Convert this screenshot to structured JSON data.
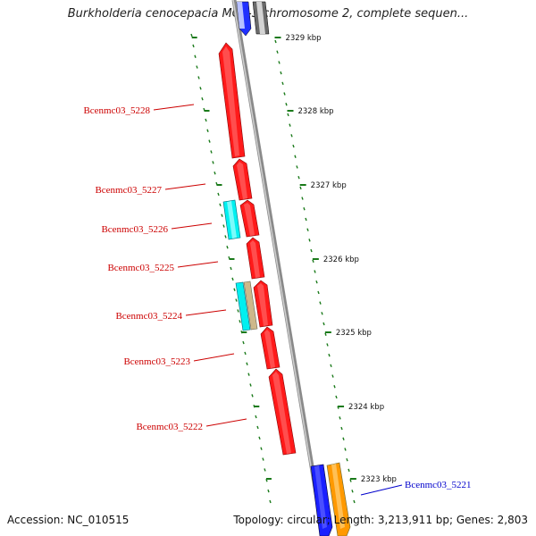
{
  "title": "Burkholderia cenocepacia MC0-3 chromosome 2, complete sequen...",
  "footer": {
    "accession": "Accession: NC_010515",
    "summary": "Topology: circular; Length: 3,213,911 bp; Genes: 2,803"
  },
  "colors": {
    "gene_red": "#ff0000",
    "gene_cyan": "#00ffff",
    "gene_tan": "#c8b482",
    "gene_blue": "#0000ff",
    "gene_orange": "#ff9900",
    "tick_green": "#1a7a1a",
    "label_red": "#cc0000",
    "label_blue": "#0000cc",
    "backbone": "#909090"
  },
  "scale_ticks": [
    {
      "label": "2329 kbp"
    },
    {
      "label": "2328 kbp"
    },
    {
      "label": "2327 kbp"
    },
    {
      "label": "2326 kbp"
    },
    {
      "label": "2325 kbp"
    },
    {
      "label": "2324 kbp"
    },
    {
      "label": "2323 kbp"
    }
  ],
  "gene_labels": [
    {
      "name": "Bcenmc03_5228",
      "color": "red"
    },
    {
      "name": "Bcenmc03_5227",
      "color": "red"
    },
    {
      "name": "Bcenmc03_5226",
      "color": "red"
    },
    {
      "name": "Bcenmc03_5225",
      "color": "red"
    },
    {
      "name": "Bcenmc03_5224",
      "color": "red"
    },
    {
      "name": "Bcenmc03_5223",
      "color": "red"
    },
    {
      "name": "Bcenmc03_5222",
      "color": "red"
    },
    {
      "name": "Bcenmc03_5221",
      "color": "blue"
    }
  ]
}
